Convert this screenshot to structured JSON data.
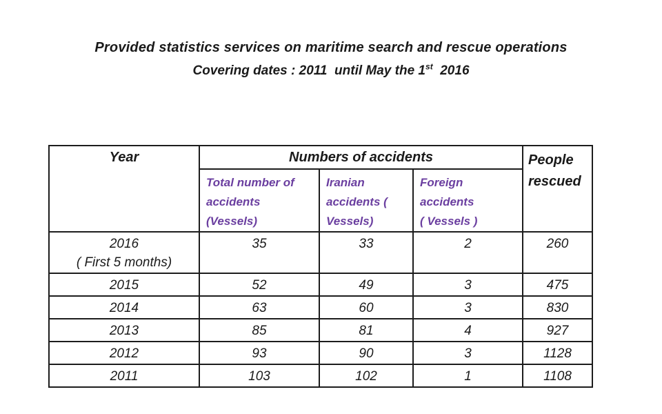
{
  "colors": {
    "accent": "#6b3fa0",
    "text": "#1a1a1a",
    "border": "#1c1c1c"
  },
  "title": {
    "line1": "Provided statistics services on maritime search and rescue operations",
    "line2_prefix": "Covering dates : 2011  until May the 1",
    "line2_sup": "st",
    "line2_suffix": "  2016"
  },
  "table": {
    "header": {
      "year": "Year",
      "accidents_group": "Numbers of accidents",
      "people_rescued": "People rescued",
      "sub_total": "Total number of\naccidents\n(Vessels)",
      "sub_iranian": "Iranian\naccidents (\nVessels)",
      "sub_foreign": "Foreign\naccidents\n( Vessels )"
    },
    "rows": [
      {
        "year": "2016\n( First 5 months)",
        "total": "35",
        "iranian": "33",
        "foreign": "2",
        "rescued": "260"
      },
      {
        "year": "2015",
        "total": "52",
        "iranian": "49",
        "foreign": "3",
        "rescued": "475"
      },
      {
        "year": "2014",
        "total": "63",
        "iranian": "60",
        "foreign": "3",
        "rescued": "830"
      },
      {
        "year": "2013",
        "total": "85",
        "iranian": "81",
        "foreign": "4",
        "rescued": "927"
      },
      {
        "year": "2012",
        "total": "93",
        "iranian": "90",
        "foreign": "3",
        "rescued": "1128"
      },
      {
        "year": "2011",
        "total": "103",
        "iranian": "102",
        "foreign": "1",
        "rescued": "1108"
      }
    ]
  },
  "chart_data": {
    "type": "table",
    "title": "Provided statistics services on maritime search and rescue operations — Covering dates : 2011 until May the 1st 2016",
    "columns": [
      "Year",
      "Total number of accidents (Vessels)",
      "Iranian accidents (Vessels)",
      "Foreign accidents (Vessels)",
      "People rescued"
    ],
    "rows": [
      [
        "2016 ( First 5 months)",
        35,
        33,
        2,
        260
      ],
      [
        "2015",
        52,
        49,
        3,
        475
      ],
      [
        "2014",
        63,
        60,
        3,
        830
      ],
      [
        "2013",
        85,
        81,
        4,
        927
      ],
      [
        "2012",
        93,
        90,
        3,
        1128
      ],
      [
        "2011",
        103,
        102,
        1,
        1108
      ]
    ]
  }
}
